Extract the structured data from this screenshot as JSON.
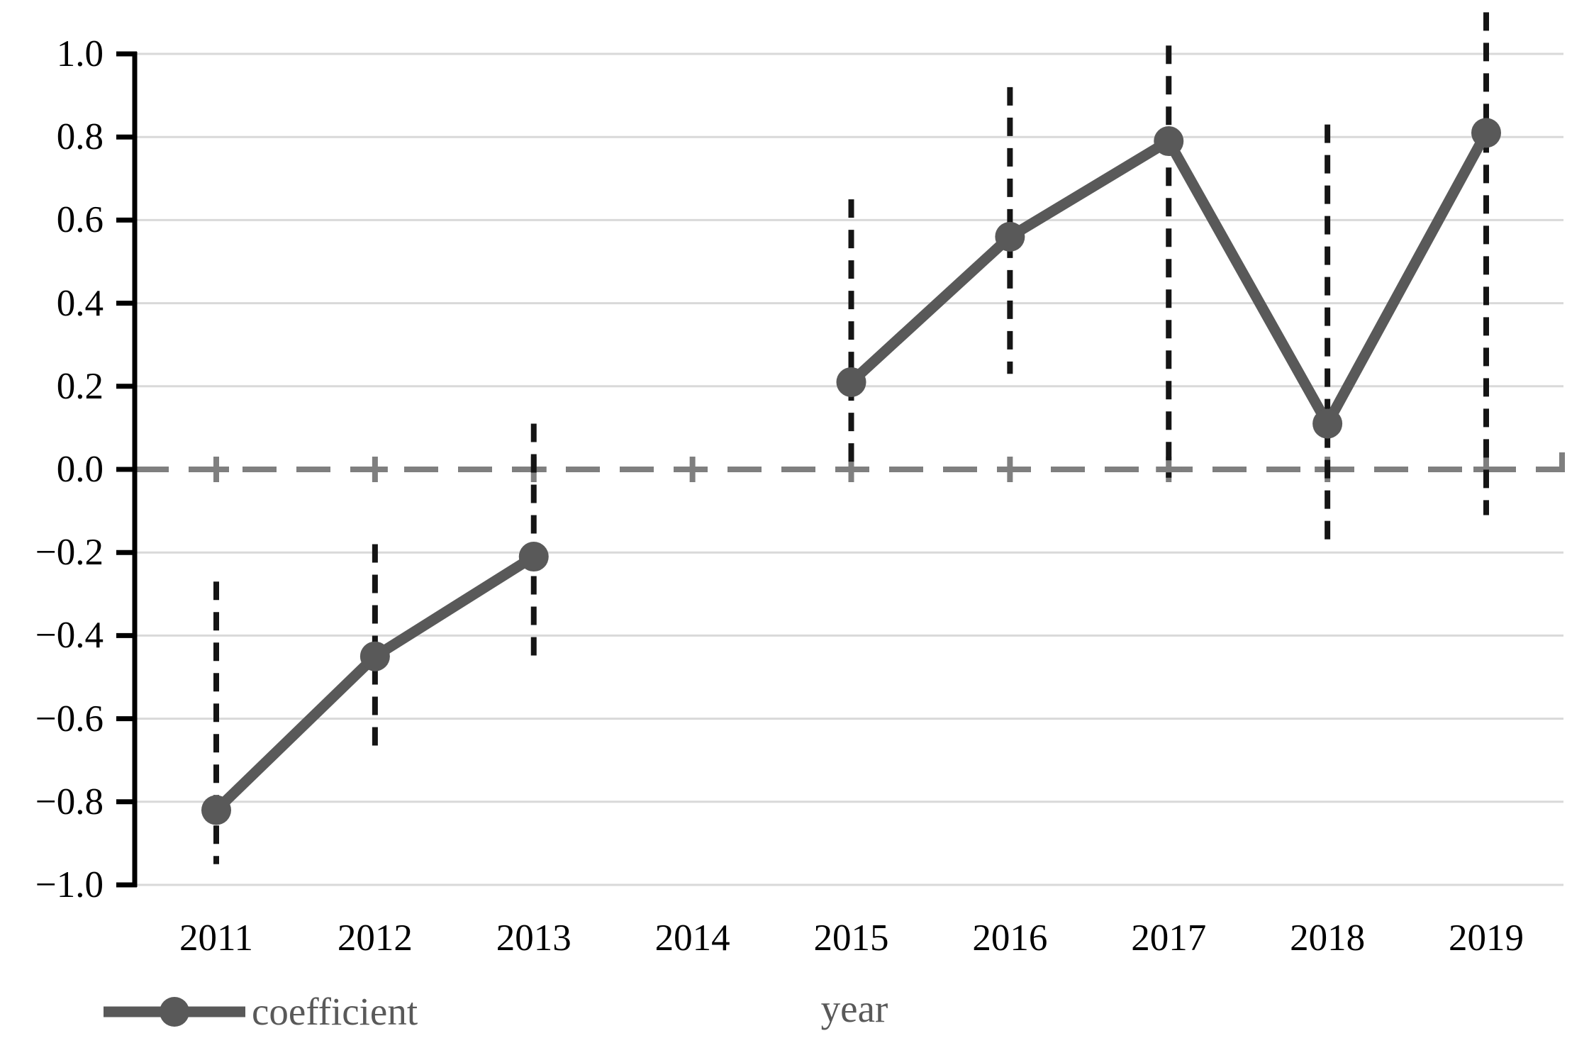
{
  "page": {
    "background": "#ffffff"
  },
  "chart_data": {
    "type": "line",
    "title": "",
    "xlabel": "year",
    "legend_label": "coefficient",
    "legend_position": "bottom-left",
    "grid": true,
    "categories": [
      "2011",
      "2012",
      "2013",
      "2014",
      "2015",
      "2016",
      "2017",
      "2018",
      "2019"
    ],
    "series": [
      {
        "name": "coefficient",
        "values": [
          -0.82,
          -0.45,
          -0.21,
          null,
          0.21,
          0.56,
          0.79,
          0.11,
          0.81
        ],
        "ci_low": [
          -0.95,
          -0.68,
          -0.46,
          null,
          0.0,
          0.23,
          -0.02,
          -0.19,
          -0.11
        ],
        "ci_high": [
          -0.27,
          -0.18,
          0.11,
          null,
          0.65,
          0.92,
          1.02,
          0.83,
          1.1
        ]
      }
    ],
    "baseline": 0.0,
    "ylim": [
      -1.0,
      1.0
    ],
    "y_ticks": [
      1.0,
      0.8,
      0.6,
      0.4,
      0.2,
      0.0,
      -0.2,
      -0.4,
      -0.6,
      -0.8,
      -1.0
    ],
    "y_tick_labels": [
      "1.0",
      "0.8",
      "0.6",
      "0.4",
      "0.2",
      "0.0",
      "−0.2",
      "−0.4",
      "−0.6",
      "−0.8",
      "−1.0"
    ],
    "colors": {
      "series": "#595959",
      "ci": "#151515",
      "zero_line": "#7f7f7f",
      "grid": "#d9d9d9",
      "axis": "#000000",
      "tick_label": "#000000",
      "label_text": "#595959"
    }
  }
}
